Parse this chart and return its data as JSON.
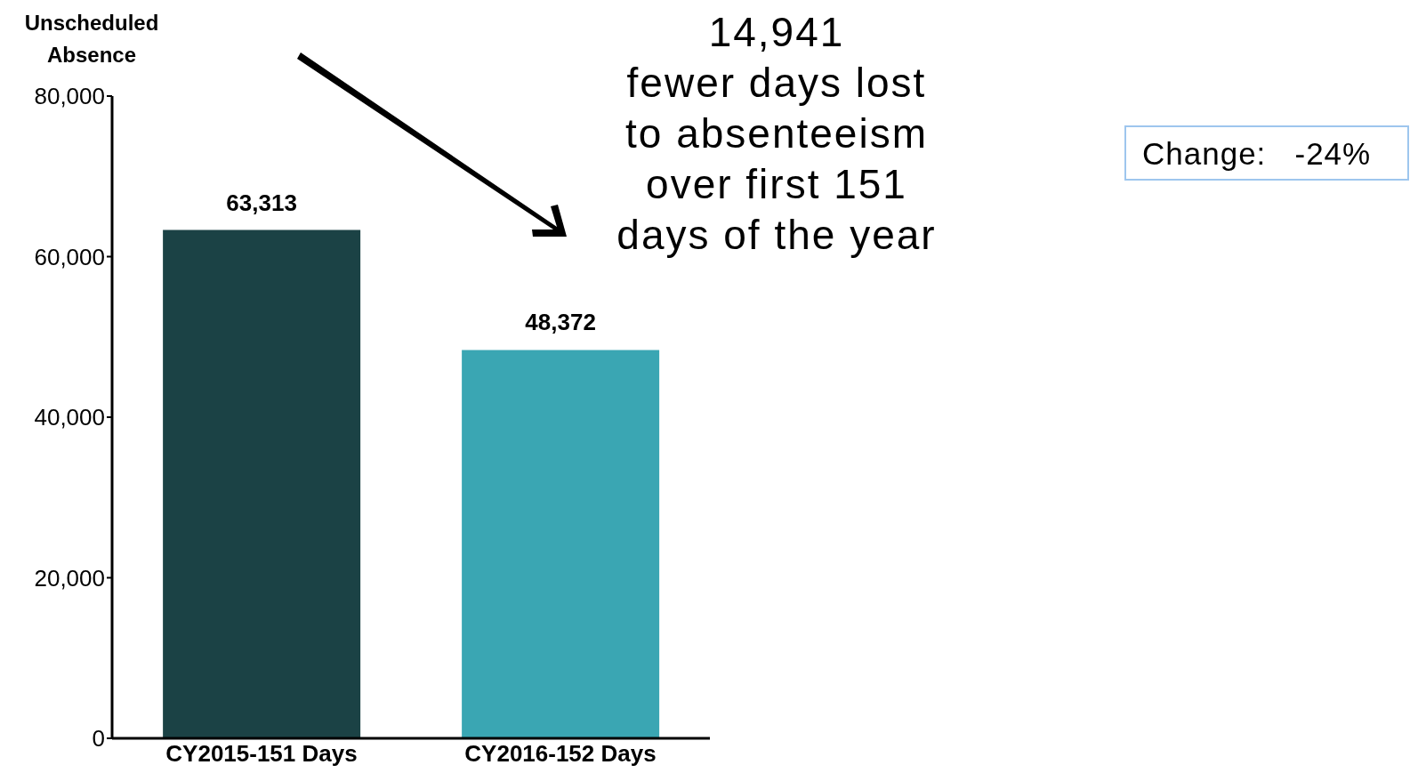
{
  "chart_data": {
    "type": "bar",
    "ylabel": "Unscheduled Absence",
    "categories": [
      "CY2015-151 Days",
      "CY2016-152 Days"
    ],
    "values": [
      63313,
      48372
    ],
    "colors": [
      "#1b4245",
      "#3aa6b3"
    ],
    "ylim": [
      0,
      80000
    ],
    "yticks": [
      0,
      {
        "value": 20000,
        "label": "20,000"
      },
      {
        "value": 40000,
        "label": "40,000"
      },
      {
        "value": 60000,
        "label": "60,000"
      },
      {
        "value": 80000,
        "label": "80,000"
      }
    ],
    "value_labels": [
      "63,313",
      "48,372"
    ],
    "annotations": [
      "14,941\nfewer days lost\nto absenteeism\nover first 151\ndays of the year",
      "Change:   -24%"
    ]
  }
}
